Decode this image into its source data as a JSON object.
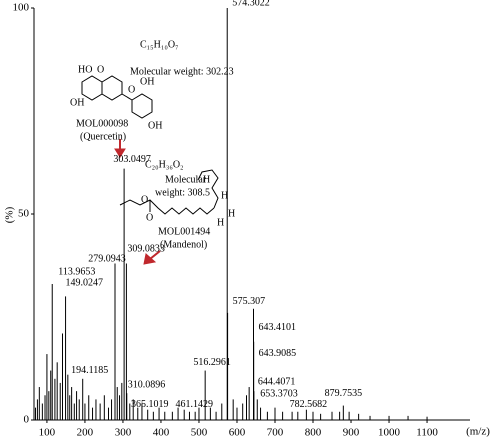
{
  "chart_data": {
    "type": "spectrum",
    "x_label": "(m/z)",
    "y_label": "(%)",
    "xlim": [
      66,
      1213
    ],
    "ylim": [
      0,
      100
    ],
    "xticks": [
      100,
      200,
      300,
      400,
      500,
      600,
      700,
      800,
      900,
      1000,
      1100
    ],
    "yticks": [
      0,
      50,
      100
    ],
    "series": [
      {
        "color": "#000000",
        "labeled": true,
        "x": [
          113.9653,
          149.0247,
          194.1185,
          279.0943,
          303.0497,
          309.0833,
          310.0896,
          365.1019,
          461.1429,
          516.2961,
          574.3022,
          575.307,
          643.4101,
          643.9085,
          644.4071,
          653.3703,
          782.5682,
          879.7535
        ],
        "values": [
          33,
          30,
          10,
          38,
          61,
          38,
          6.5,
          2.5,
          2.5,
          12,
          100,
          26,
          27,
          19,
          7,
          5,
          2.5,
          3.5
        ]
      },
      {
        "color": "#000000",
        "labeled": false,
        "x": [
          70,
          75,
          80,
          88,
          95,
          100,
          105,
          110,
          121,
          127,
          135,
          141,
          155,
          160,
          165,
          172,
          178,
          185,
          200,
          210,
          220,
          229,
          240,
          251,
          262,
          270,
          285,
          291,
          297,
          318,
          327,
          339,
          350,
          380,
          395,
          410,
          430,
          445,
          475,
          490,
          500,
          530,
          545,
          560,
          590,
          600,
          615,
          625,
          632,
          662,
          680,
          700,
          720,
          745,
          760,
          800,
          820,
          850,
          870,
          895,
          920,
          950,
          1000,
          1050,
          1100
        ],
        "values": [
          3,
          5,
          8,
          4,
          6,
          16,
          7,
          12,
          10,
          14,
          9,
          21,
          11,
          6,
          8,
          4,
          7,
          5,
          4,
          6,
          3,
          5,
          4,
          6,
          3,
          5,
          8,
          6,
          9,
          4,
          5,
          3,
          4,
          2,
          3,
          2,
          2,
          3,
          2,
          2,
          3,
          3,
          2,
          4,
          5,
          3,
          4,
          6,
          8,
          3,
          2,
          3,
          2,
          2,
          2,
          2,
          1.5,
          2,
          2,
          2,
          1.5,
          1,
          1,
          1,
          0.8
        ]
      }
    ],
    "annotations": {
      "quercetin": {
        "formula": "C₁₅H₁₀O₇",
        "weight": "Molecular weight: 302.23",
        "atoms": [
          "HO",
          "O",
          "OH",
          "O",
          "OH",
          "OH"
        ],
        "id": "MOL000098",
        "name": "(Quercetin)"
      },
      "mandenol": {
        "formula": "C₂₀H₃₆O₂",
        "weight": [
          "Molecular",
          "weight: 308.5"
        ],
        "atoms": [
          "O",
          "O",
          "H",
          "H",
          "H",
          "H"
        ],
        "id": "MOL001494",
        "name": "(Mandenol)"
      }
    }
  }
}
